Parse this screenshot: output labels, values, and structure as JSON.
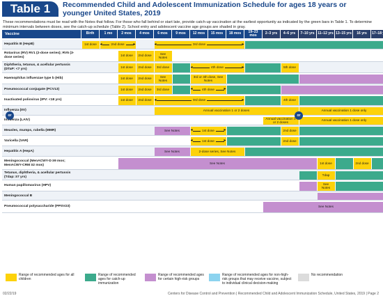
{
  "header": {
    "table_label": "Table 1",
    "title": "Recommended Child and Adolescent Immunization Schedule for ages 18 years or younger United States, 2019"
  },
  "intro": "These recommendations must be read with the Notes that follow. For those who fall behind or start late, provide catch-up vaccination at the earliest opportunity as indicated by the green bars in Table 1. To determine minimum intervals between doses, see the catch-up schedule (Table 2). School entry and adolescent vaccine age groups are shaded in gray.",
  "columns": [
    "Birth",
    "1 mo",
    "2 mos",
    "4 mos",
    "6 mos",
    "9 mos",
    "12 mos",
    "15 mos",
    "18 mos",
    "19–23 mos",
    "2–3 yrs",
    "4–6 yrs",
    "7–10 yrs",
    "11–12 yrs",
    "13–15 yrs",
    "16 yrs",
    "17–18 yrs"
  ],
  "vaccine_header": "Vaccine",
  "colors": {
    "all_children": "#fdd20a",
    "catch_up": "#3caa8c",
    "high_risk": "#c48fcf",
    "non_high_risk": "#8cd3ef",
    "no_recommendation": "#dcdcdc",
    "header": "#19478a"
  },
  "rows": [
    {
      "label": "Hepatitis B (HepB)",
      "cells": [
        {
          "from": 0,
          "to": 0,
          "color": "yellow",
          "text": "1st dose"
        },
        {
          "from": 1,
          "to": 2,
          "color": "yellow",
          "text": "2nd dose",
          "arrow": true
        },
        {
          "from": 3,
          "to": 3,
          "color": "blank",
          "text": ""
        },
        {
          "from": 4,
          "to": 8,
          "color": "yellow",
          "text": "3rd dose",
          "arrow": true
        },
        {
          "from": 9,
          "to": 16,
          "color": "green",
          "text": ""
        }
      ]
    },
    {
      "label": "Rotavirus (RV) RV1 (2-dose series); RV5 (3-dose series)",
      "cells": [
        {
          "from": 0,
          "to": 1,
          "color": "blank",
          "text": ""
        },
        {
          "from": 2,
          "to": 2,
          "color": "yellow",
          "text": "1st dose"
        },
        {
          "from": 3,
          "to": 3,
          "color": "yellow",
          "text": "2nd dose"
        },
        {
          "from": 4,
          "to": 4,
          "color": "yellow",
          "text": "See Notes"
        },
        {
          "from": 5,
          "to": 16,
          "color": "blank",
          "text": ""
        }
      ]
    },
    {
      "label": "Diphtheria, tetanus, & acellular pertussis (DTaP: <7 yrs)",
      "cells": [
        {
          "from": 0,
          "to": 1,
          "color": "blank",
          "text": ""
        },
        {
          "from": 2,
          "to": 2,
          "color": "yellow",
          "text": "1st dose"
        },
        {
          "from": 3,
          "to": 3,
          "color": "yellow",
          "text": "2nd dose"
        },
        {
          "from": 4,
          "to": 4,
          "color": "yellow",
          "text": "3rd dose"
        },
        {
          "from": 5,
          "to": 5,
          "color": "green",
          "text": ""
        },
        {
          "from": 6,
          "to": 8,
          "color": "yellow",
          "text": "4th dose",
          "arrow": true
        },
        {
          "from": 9,
          "to": 10,
          "color": "green",
          "text": ""
        },
        {
          "from": 11,
          "to": 11,
          "color": "yellow",
          "text": "5th dose"
        },
        {
          "from": 12,
          "to": 16,
          "color": "blank",
          "text": ""
        }
      ]
    },
    {
      "label": "Haemophilus influenzae type b (Hib)",
      "cells": [
        {
          "from": 0,
          "to": 1,
          "color": "blank",
          "text": ""
        },
        {
          "from": 2,
          "to": 2,
          "color": "yellow",
          "text": "1st dose"
        },
        {
          "from": 3,
          "to": 3,
          "color": "yellow",
          "text": "2nd dose"
        },
        {
          "from": 4,
          "to": 4,
          "color": "yellow",
          "text": "See Notes"
        },
        {
          "from": 5,
          "to": 5,
          "color": "green",
          "text": ""
        },
        {
          "from": 6,
          "to": 7,
          "color": "yellow",
          "text": "3rd or 4th dose, See Notes",
          "arrow": true
        },
        {
          "from": 8,
          "to": 11,
          "color": "green",
          "text": ""
        },
        {
          "from": 12,
          "to": 16,
          "color": "purple",
          "text": ""
        }
      ]
    },
    {
      "label": "Pneumococcal conjugate (PCV13)",
      "cells": [
        {
          "from": 0,
          "to": 1,
          "color": "blank",
          "text": ""
        },
        {
          "from": 2,
          "to": 2,
          "color": "yellow",
          "text": "1st dose"
        },
        {
          "from": 3,
          "to": 3,
          "color": "yellow",
          "text": "2nd dose"
        },
        {
          "from": 4,
          "to": 4,
          "color": "yellow",
          "text": "3rd dose"
        },
        {
          "from": 5,
          "to": 5,
          "color": "green",
          "text": ""
        },
        {
          "from": 6,
          "to": 7,
          "color": "yellow",
          "text": "4th dose",
          "arrow": true
        },
        {
          "from": 8,
          "to": 10,
          "color": "green",
          "text": ""
        },
        {
          "from": 11,
          "to": 16,
          "color": "purple",
          "text": ""
        }
      ]
    },
    {
      "label": "Inactivated poliovirus (IPV: <18 yrs)",
      "cells": [
        {
          "from": 0,
          "to": 1,
          "color": "blank",
          "text": ""
        },
        {
          "from": 2,
          "to": 2,
          "color": "yellow",
          "text": "1st dose"
        },
        {
          "from": 3,
          "to": 3,
          "color": "yellow",
          "text": "2nd dose"
        },
        {
          "from": 4,
          "to": 8,
          "color": "yellow",
          "text": "3rd dose",
          "arrow": true
        },
        {
          "from": 9,
          "to": 10,
          "color": "green",
          "text": ""
        },
        {
          "from": 11,
          "to": 11,
          "color": "yellow",
          "text": "4th dose"
        },
        {
          "from": 12,
          "to": 16,
          "color": "green",
          "text": ""
        }
      ]
    },
    {
      "label": "Influenza (IIV)",
      "cells": [
        {
          "from": 0,
          "to": 3,
          "color": "blank",
          "text": ""
        },
        {
          "from": 4,
          "to": 11,
          "color": "yellow",
          "text": "Annual vaccination 1 or 2 doses"
        },
        {
          "from": 12,
          "to": 16,
          "color": "yellow",
          "text": "Annual vaccination 1 dose only"
        }
      ]
    },
    {
      "label": "Influenza (LAIV)",
      "cells": [
        {
          "from": 0,
          "to": 9,
          "color": "blank",
          "text": ""
        },
        {
          "from": 10,
          "to": 11,
          "color": "yellow",
          "text": "Annual vaccination 1 or 2 doses"
        },
        {
          "from": 12,
          "to": 16,
          "color": "yellow",
          "text": "Annual vaccination 1 dose only"
        }
      ]
    },
    {
      "label": "Measles, mumps, rubella (MMR)",
      "cells": [
        {
          "from": 0,
          "to": 3,
          "color": "blank",
          "text": ""
        },
        {
          "from": 4,
          "to": 5,
          "color": "purple",
          "text": "See Notes"
        },
        {
          "from": 6,
          "to": 7,
          "color": "yellow",
          "text": "1st dose",
          "arrow": true
        },
        {
          "from": 8,
          "to": 10,
          "color": "green",
          "text": ""
        },
        {
          "from": 11,
          "to": 11,
          "color": "yellow",
          "text": "2nd dose"
        },
        {
          "from": 12,
          "to": 16,
          "color": "green",
          "text": ""
        }
      ]
    },
    {
      "label": "Varicella (VAR)",
      "cells": [
        {
          "from": 0,
          "to": 5,
          "color": "blank",
          "text": ""
        },
        {
          "from": 6,
          "to": 7,
          "color": "yellow",
          "text": "1st dose",
          "arrow": true
        },
        {
          "from": 8,
          "to": 10,
          "color": "green",
          "text": ""
        },
        {
          "from": 11,
          "to": 11,
          "color": "yellow",
          "text": "2nd dose"
        },
        {
          "from": 12,
          "to": 16,
          "color": "green",
          "text": ""
        }
      ]
    },
    {
      "label": "Hepatitis A (HepA)",
      "cells": [
        {
          "from": 0,
          "to": 3,
          "color": "blank",
          "text": ""
        },
        {
          "from": 4,
          "to": 5,
          "color": "purple",
          "text": "See Notes"
        },
        {
          "from": 6,
          "to": 8,
          "color": "yellow",
          "text": "2-dose series, See Notes"
        },
        {
          "from": 9,
          "to": 16,
          "color": "green",
          "text": ""
        }
      ]
    },
    {
      "label": "Meningococcal (MenACWY-D ≥9 mos; MenACWY-CRM ≥2 mos)",
      "cells": [
        {
          "from": 0,
          "to": 1,
          "color": "blank",
          "text": ""
        },
        {
          "from": 2,
          "to": 12,
          "color": "purple",
          "text": "See Notes"
        },
        {
          "from": 13,
          "to": 13,
          "color": "yellow",
          "text": "1st dose"
        },
        {
          "from": 14,
          "to": 14,
          "color": "green",
          "text": ""
        },
        {
          "from": 15,
          "to": 15,
          "color": "yellow",
          "text": "2nd dose"
        },
        {
          "from": 16,
          "to": 16,
          "color": "green",
          "text": ""
        }
      ]
    },
    {
      "label": "Tetanus, diphtheria, & acellular pertussis (Tdap: ≥7 yrs)",
      "cells": [
        {
          "from": 0,
          "to": 11,
          "color": "blank",
          "text": ""
        },
        {
          "from": 12,
          "to": 12,
          "color": "green",
          "text": ""
        },
        {
          "from": 13,
          "to": 13,
          "color": "yellow",
          "text": "Tdap"
        },
        {
          "from": 14,
          "to": 16,
          "color": "green",
          "text": ""
        }
      ]
    },
    {
      "label": "Human papillomavirus (HPV)",
      "cells": [
        {
          "from": 0,
          "to": 11,
          "color": "blank",
          "text": ""
        },
        {
          "from": 12,
          "to": 12,
          "color": "purple",
          "text": ""
        },
        {
          "from": 13,
          "to": 13,
          "color": "yellow",
          "text": "See Notes"
        },
        {
          "from": 14,
          "to": 16,
          "color": "green",
          "text": ""
        }
      ]
    },
    {
      "label": "Meningococcal B",
      "cells": [
        {
          "from": 0,
          "to": 12,
          "color": "blank",
          "text": ""
        },
        {
          "from": 13,
          "to": 16,
          "color": "purple",
          "text": ""
        }
      ]
    },
    {
      "label": "Pneumococcal polysaccharide (PPSV23)",
      "cells": [
        {
          "from": 0,
          "to": 9,
          "color": "blank",
          "text": ""
        },
        {
          "from": 10,
          "to": 16,
          "color": "purple",
          "text": "See Notes"
        }
      ]
    }
  ],
  "or_label": "or",
  "legend": [
    {
      "color": "yellow",
      "text": "Range of recommended ages for all children"
    },
    {
      "color": "green",
      "text": "Range of recommended ages for catch-up immunization"
    },
    {
      "color": "purple",
      "text": "Range of recommended ages for certain high-risk groups"
    },
    {
      "color": "blue",
      "text": "Range of recommended ages for non-high-risk groups that may receive vaccine, subject to individual clinical decision-making"
    },
    {
      "color": "gray",
      "text": "No recommendation"
    }
  ],
  "footer": {
    "date": "02/22/19",
    "source": "Centers for Disease Control and Prevention | Recommended Child and Adolescent Immunization Schedule, United States, 2019 | Page 2"
  }
}
